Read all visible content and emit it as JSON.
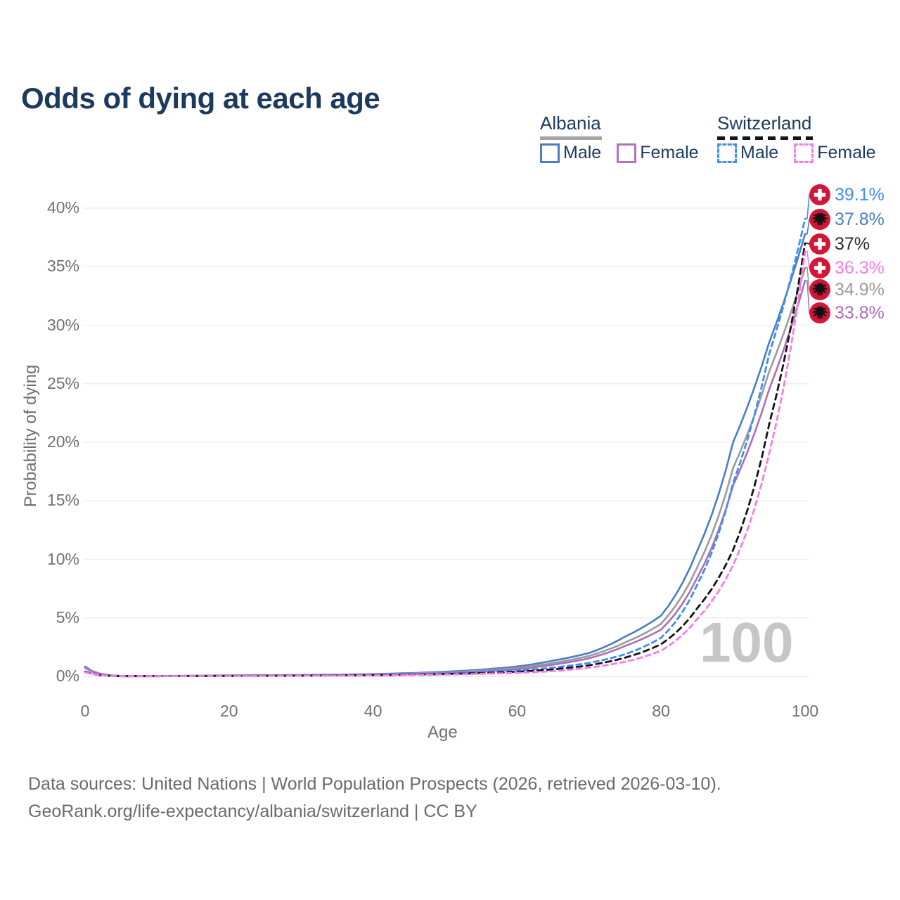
{
  "title": "Odds of dying at each age",
  "watermark": "100",
  "colors": {
    "title_navy": "#1c3a5e",
    "flag_red": "#d31638",
    "grid": "#ededed",
    "axis_text": "#707070"
  },
  "legend": {
    "groups": [
      {
        "name": "Albania",
        "underline_style": "solid",
        "underline_color": "#a5a5a5",
        "items": [
          {
            "label": "Male",
            "color": "#4a7dc6",
            "dashed": false
          },
          {
            "label": "Female",
            "color": "#b273bb",
            "dashed": false
          }
        ]
      },
      {
        "name": "Switzerland",
        "underline_style": "dashed",
        "underline_color": "#141414",
        "items": [
          {
            "label": "Male",
            "color": "#3f8df5",
            "dashed": true
          },
          {
            "label": "Female",
            "color": "#fa7ce9",
            "dashed": true
          }
        ]
      }
    ]
  },
  "footer": {
    "line1": "Data sources: United Nations | World Population Prospects (2026, retrieved 2026-03-10).",
    "line2": "GeoRank.org/life-expectancy/albania/switzerland | CC BY"
  },
  "chart_data": {
    "type": "line",
    "title": "Odds of dying at each age",
    "xlabel": "Age",
    "ylabel": "Probability of dying",
    "xlim": [
      0,
      100
    ],
    "ylim": [
      0,
      41
    ],
    "grid": "horizontal",
    "hovered_age": "100",
    "x_ticks": [
      {
        "value": 0,
        "label": "0"
      },
      {
        "value": 20,
        "label": "20"
      },
      {
        "value": 40,
        "label": "40"
      },
      {
        "value": 60,
        "label": "60"
      },
      {
        "value": 80,
        "label": "80"
      },
      {
        "value": 100,
        "label": "100"
      }
    ],
    "y_ticks": [
      {
        "value": 0,
        "label": "0%"
      },
      {
        "value": 5,
        "label": "5%"
      },
      {
        "value": 10,
        "label": "10%"
      },
      {
        "value": 15,
        "label": "15%"
      },
      {
        "value": 20,
        "label": "20%"
      },
      {
        "value": 25,
        "label": "25%"
      },
      {
        "value": 30,
        "label": "30%"
      },
      {
        "value": 35,
        "label": "35%"
      },
      {
        "value": 40,
        "label": "40%"
      }
    ],
    "ages": [
      0,
      5,
      10,
      15,
      20,
      25,
      30,
      35,
      40,
      45,
      50,
      55,
      60,
      65,
      70,
      75,
      80,
      85,
      90,
      95,
      100
    ],
    "series": [
      {
        "name": "Albania Male",
        "country": "Albania",
        "sex": "Male",
        "color": "#4a7dc6",
        "label_color": "#4a7dc6",
        "style": "solid",
        "flag": "albania",
        "end_value": 37.8,
        "end_label": "37.8%",
        "values": [
          0.85,
          0.04,
          0.04,
          0.06,
          0.09,
          0.1,
          0.12,
          0.15,
          0.2,
          0.28,
          0.4,
          0.58,
          0.85,
          1.35,
          2.0,
          3.4,
          5.2,
          10.7,
          20.0,
          28.5,
          37.8
        ]
      },
      {
        "name": "Albania Total",
        "country": "Albania",
        "sex": "Both",
        "color": "#9b9b9b",
        "label_color": "#9b9b9b",
        "style": "solid",
        "flag": "albania",
        "end_value": 34.9,
        "end_label": "34.9%",
        "values": [
          0.8,
          0.04,
          0.03,
          0.05,
          0.07,
          0.08,
          0.1,
          0.13,
          0.17,
          0.24,
          0.34,
          0.5,
          0.72,
          1.15,
          1.75,
          2.9,
          4.5,
          9.3,
          17.8,
          26.0,
          34.9
        ]
      },
      {
        "name": "Albania Female",
        "country": "Albania",
        "sex": "Female",
        "color": "#ab6fb8",
        "label_color": "#ab6fb8",
        "style": "solid",
        "flag": "albania",
        "end_value": 33.8,
        "end_label": "33.8%",
        "values": [
          0.74,
          0.03,
          0.03,
          0.04,
          0.05,
          0.06,
          0.08,
          0.1,
          0.14,
          0.19,
          0.28,
          0.42,
          0.62,
          1.0,
          1.55,
          2.6,
          4.0,
          8.4,
          16.3,
          24.5,
          33.8
        ]
      },
      {
        "name": "Switzerland Male",
        "country": "Switzerland",
        "sex": "Male",
        "color": "#3f8df5",
        "label_color": "#3f8df5",
        "style": "dashed",
        "flag": "switzerland",
        "end_value": 39.1,
        "end_label": "39.1%",
        "values": [
          0.42,
          0.02,
          0.02,
          0.04,
          0.06,
          0.07,
          0.08,
          0.1,
          0.13,
          0.18,
          0.26,
          0.37,
          0.5,
          0.75,
          1.15,
          1.9,
          3.3,
          7.8,
          16.5,
          27.5,
          39.1
        ]
      },
      {
        "name": "Switzerland Total",
        "country": "Switzerland",
        "sex": "Both",
        "color": "#141414",
        "label_color": "#2d2d2d",
        "style": "dashed",
        "flag": "switzerland",
        "end_value": 37.0,
        "end_label": "37%",
        "values": [
          0.38,
          0.02,
          0.02,
          0.03,
          0.04,
          0.05,
          0.06,
          0.08,
          0.1,
          0.14,
          0.2,
          0.28,
          0.4,
          0.6,
          0.95,
          1.6,
          2.75,
          5.8,
          10.8,
          21.5,
          37.0
        ]
      },
      {
        "name": "Switzerland Female",
        "country": "Switzerland",
        "sex": "Female",
        "color": "#fa7ce9",
        "label_color": "#fa7ce9",
        "style": "dashed",
        "flag": "switzerland",
        "end_value": 36.3,
        "end_label": "36.3%",
        "values": [
          0.35,
          0.02,
          0.02,
          0.03,
          0.03,
          0.04,
          0.05,
          0.06,
          0.08,
          0.11,
          0.16,
          0.22,
          0.3,
          0.45,
          0.75,
          1.25,
          2.2,
          4.9,
          9.5,
          19.0,
          36.3
        ]
      }
    ]
  }
}
